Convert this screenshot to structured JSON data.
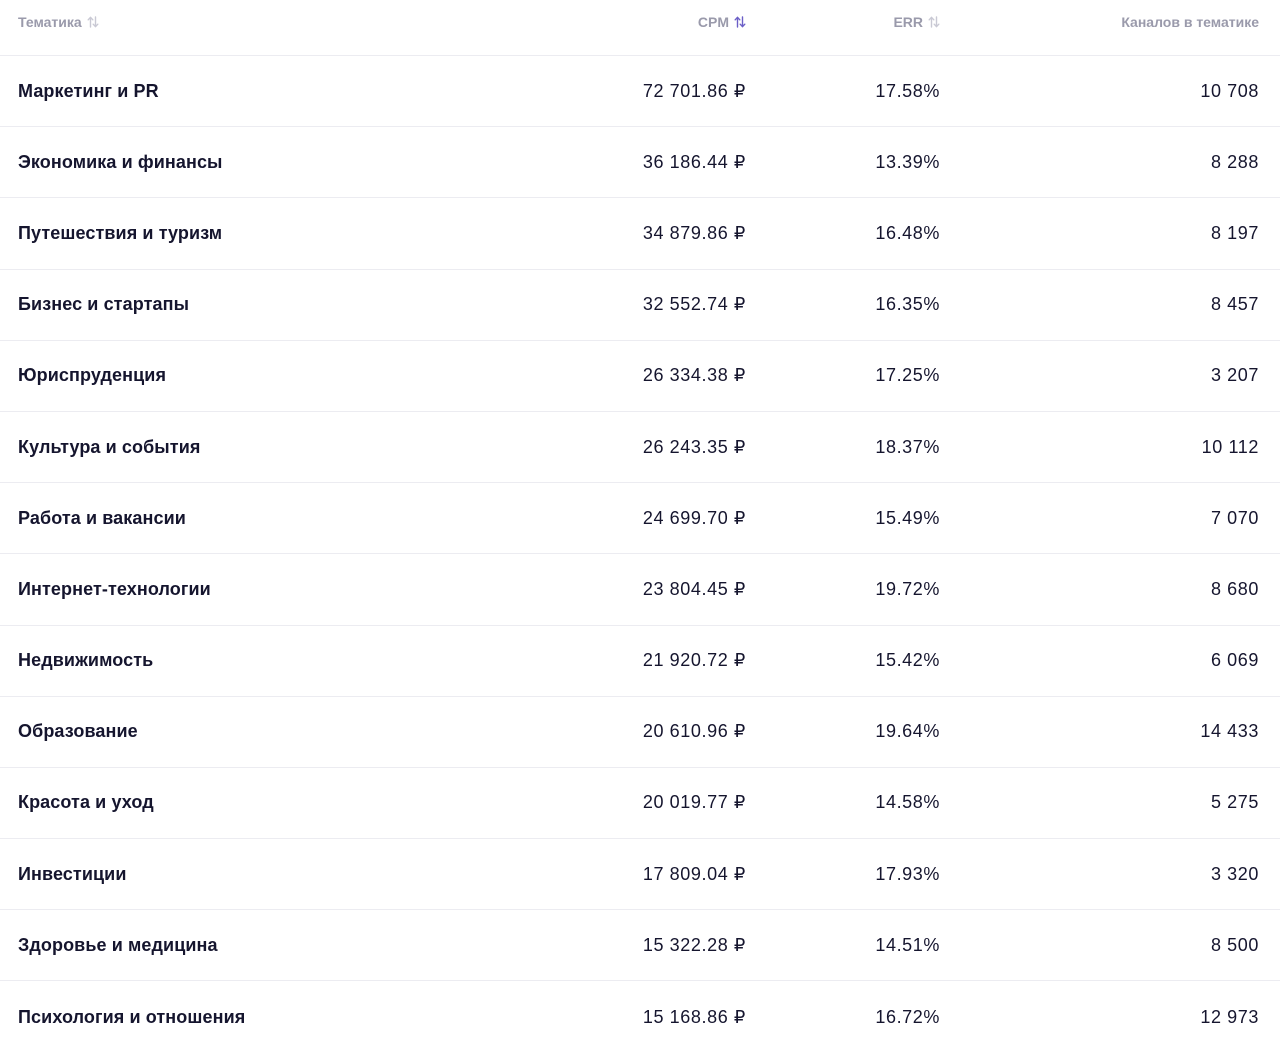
{
  "columns": {
    "topic": "Тематика",
    "cpm": "CPM",
    "err": "ERR",
    "channels": "Каналов в тематике"
  },
  "sort": {
    "active_column": "cpm",
    "active_color": "#6b5fc7",
    "inactive_color": "#c9c9d4"
  },
  "rows": [
    {
      "topic": "Маркетинг и PR",
      "cpm": "72 701.86 ₽",
      "err": "17.58%",
      "channels": "10 708"
    },
    {
      "topic": "Экономика и финансы",
      "cpm": "36 186.44 ₽",
      "err": "13.39%",
      "channels": "8 288"
    },
    {
      "topic": "Путешествия и туризм",
      "cpm": "34 879.86 ₽",
      "err": "16.48%",
      "channels": "8 197"
    },
    {
      "topic": "Бизнес и стартапы",
      "cpm": "32 552.74 ₽",
      "err": "16.35%",
      "channels": "8 457"
    },
    {
      "topic": "Юриспруденция",
      "cpm": "26 334.38 ₽",
      "err": "17.25%",
      "channels": "3 207"
    },
    {
      "topic": "Культура и события",
      "cpm": "26 243.35 ₽",
      "err": "18.37%",
      "channels": "10 112"
    },
    {
      "topic": "Работа и вакансии",
      "cpm": "24 699.70 ₽",
      "err": "15.49%",
      "channels": "7 070"
    },
    {
      "topic": "Интернет-технологии",
      "cpm": "23 804.45 ₽",
      "err": "19.72%",
      "channels": "8 680"
    },
    {
      "topic": "Недвижимость",
      "cpm": "21 920.72 ₽",
      "err": "15.42%",
      "channels": "6 069"
    },
    {
      "topic": "Образование",
      "cpm": "20 610.96 ₽",
      "err": "19.64%",
      "channels": "14 433"
    },
    {
      "topic": "Красота и уход",
      "cpm": "20 019.77 ₽",
      "err": "14.58%",
      "channels": "5 275"
    },
    {
      "topic": "Инвестиции",
      "cpm": "17 809.04 ₽",
      "err": "17.93%",
      "channels": "3 320"
    },
    {
      "topic": "Здоровье и медицина",
      "cpm": "15 322.28 ₽",
      "err": "14.51%",
      "channels": "8 500"
    },
    {
      "topic": "Психология и отношения",
      "cpm": "15 168.86 ₽",
      "err": "16.72%",
      "channels": "12 973"
    }
  ]
}
